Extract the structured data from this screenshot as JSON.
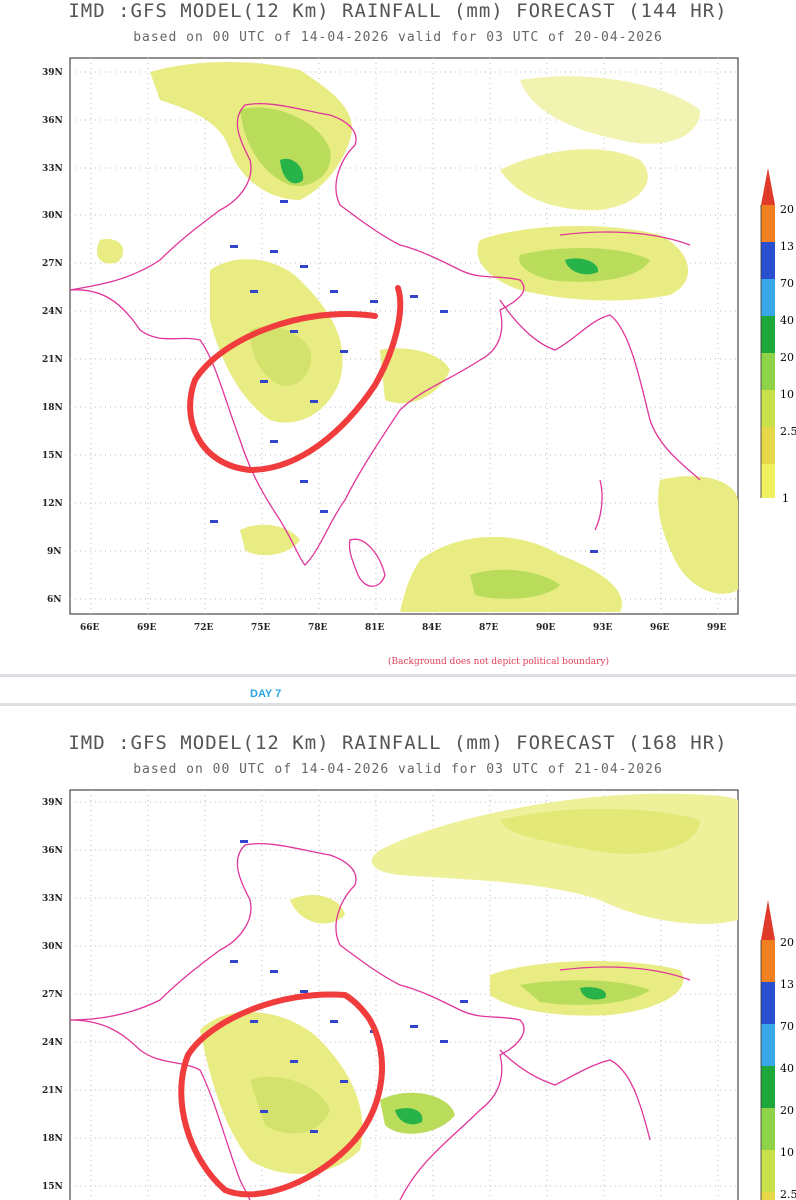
{
  "panels": [
    {
      "title": "IMD :GFS MODEL(12 Km) RAINFALL (mm) FORECAST (144 HR)",
      "subtitle": "based on 00 UTC of 14-04-2026 valid for 03 UTC of 20-04-2026",
      "lat_labels": [
        "39N",
        "36N",
        "33N",
        "30N",
        "27N",
        "24N",
        "21N",
        "18N",
        "15N",
        "12N",
        "9N",
        "6N"
      ],
      "lon_labels": [
        "66E",
        "69E",
        "72E",
        "75E",
        "78E",
        "81E",
        "84E",
        "87E",
        "90E",
        "93E",
        "96E",
        "99E"
      ],
      "colorbar": [
        "20",
        "13",
        "70",
        "40",
        "20",
        "10",
        "2.5",
        "1"
      ],
      "note": "(Background does not depict political boundary)"
    },
    {
      "title": "IMD :GFS MODEL(12 Km) RAINFALL (mm) FORECAST (168 HR)",
      "subtitle": "based on 00 UTC of 14-04-2026 valid for 03 UTC of 21-04-2026",
      "lat_labels": [
        "39N",
        "36N",
        "33N",
        "30N",
        "27N",
        "24N",
        "21N",
        "18N",
        "15N"
      ],
      "colorbar": [
        "20",
        "13",
        "70",
        "40",
        "20",
        "10",
        "2.5"
      ]
    }
  ],
  "day_label": "DAY 7",
  "colors": {
    "rain_light": "#e8ec82",
    "rain_mid": "#b9dc5a",
    "rain_heavy": "#27b34a",
    "boundary": "#e0359a",
    "annotation": "#f03c3c",
    "station": "#3344cc"
  }
}
